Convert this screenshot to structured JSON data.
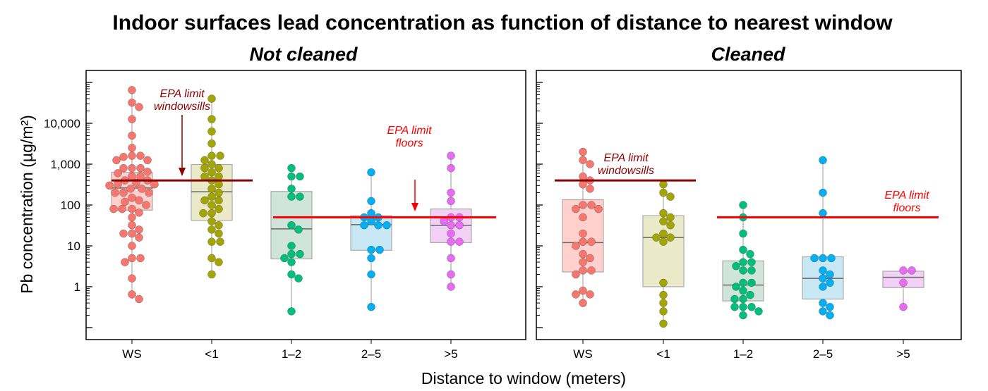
{
  "chart_data": {
    "type": "box-beeswarm",
    "title": "Indoor surfaces lead concentration as function of distance to nearest window",
    "xlabel": "Distance to window (meters)",
    "ylabel": "Pb concentration (µg/m²)",
    "yscale": "log",
    "ylim": [
      0.05,
      220000
    ],
    "yticks": [
      1,
      10,
      100,
      1000,
      10000
    ],
    "ytick_labels": [
      "1",
      "10",
      "100",
      "1,000",
      "10,000"
    ],
    "categories": [
      "WS",
      "<1",
      "1–2",
      "2–5",
      ">5"
    ],
    "colors": [
      "#f8766d",
      "#a3a500",
      "#00bf7d",
      "#00b0f6",
      "#e76bf3"
    ],
    "box_fills": [
      "#ffd0cc",
      "#eaeac8",
      "#cfe5dc",
      "#c9e8f5",
      "#f3d0f5"
    ],
    "reference_lines": [
      {
        "name": "windowsills",
        "value": 400,
        "color": "#8b0000",
        "label_1": "EPA limit",
        "label_2": "windowsills"
      },
      {
        "name": "floors",
        "value": 50,
        "color": "#ff0000",
        "label_1": "EPA limit",
        "label_2": "floors"
      }
    ],
    "panels": [
      {
        "title": "Not cleaned",
        "groups": [
          {
            "q1": 75,
            "median": 260,
            "q3": 630,
            "points": [
              65000,
              32000,
              25000,
              12600,
              5000,
              2500,
              1600,
              1600,
              1500,
              1250,
              1250,
              800,
              800,
              800,
              650,
              600,
              500,
              500,
              400,
              400,
              350,
              320,
              320,
              300,
              250,
              250,
              200,
              200,
              200,
              150,
              130,
              120,
              100,
              80,
              80,
              80,
              65,
              50,
              32,
              25,
              20,
              20,
              16,
              10,
              5,
              5,
              4,
              1.6,
              0.65,
              0.5
            ]
          },
          {
            "q1": 42,
            "median": 210,
            "q3": 980,
            "points": [
              40000,
              12600,
              6300,
              3200,
              1600,
              1600,
              1250,
              1000,
              800,
              800,
              630,
              500,
              500,
              400,
              320,
              250,
              200,
              160,
              130,
              130,
              100,
              80,
              63,
              63,
              40,
              32,
              25,
              20,
              12.6,
              12.6,
              5,
              4,
              2
            ]
          },
          {
            "q1": 4.8,
            "median": 26,
            "q3": 215,
            "points": [
              800,
              500,
              500,
              250,
              160,
              160,
              32,
              25,
              10,
              6.3,
              6.3,
              5,
              4,
              2,
              1.6,
              0.25
            ]
          },
          {
            "q1": 7.8,
            "median": 33,
            "q3": 55,
            "points": [
              630,
              125,
              63,
              50,
              50,
              40,
              32,
              32,
              32,
              8,
              8,
              5,
              2,
              0.32
            ]
          },
          {
            "q1": 12,
            "median": 32,
            "q3": 80,
            "points": [
              1600,
              800,
              200,
              125,
              50,
              50,
              40,
              32,
              32,
              20,
              12.6,
              12.6,
              5,
              2,
              1
            ]
          }
        ]
      },
      {
        "title": "Cleaned",
        "groups": [
          {
            "q1": 2.3,
            "median": 12,
            "q3": 135,
            "points": [
              2000,
              1260,
              1000,
              500,
              400,
              320,
              250,
              100,
              100,
              80,
              80,
              50,
              20,
              12.6,
              12.6,
              10,
              6.3,
              5,
              4,
              2.5,
              2.5,
              2,
              0.8,
              0.65,
              0.65,
              0.4
            ]
          },
          {
            "q1": 1.0,
            "median": 16,
            "q3": 55,
            "points": [
              320,
              200,
              160,
              63,
              50,
              40,
              32,
              20,
              16,
              16,
              12.6,
              1.25,
              0.63,
              0.4,
              0.25,
              0.125
            ]
          },
          {
            "q1": 0.45,
            "median": 1.1,
            "q3": 4.3,
            "points": [
              100,
              50,
              20,
              8,
              6.3,
              4,
              4,
              3.2,
              2.5,
              2.5,
              1.25,
              1.25,
              1,
              0.8,
              0.63,
              0.5,
              0.5,
              0.32,
              0.32,
              0.32,
              0.25,
              0.2
            ]
          },
          {
            "q1": 0.5,
            "median": 1.6,
            "q3": 5.4,
            "points": [
              1250,
              200,
              63,
              5,
              5,
              5,
              2.5,
              2,
              1.6,
              1.25,
              1,
              0.4,
              0.32,
              0.25,
              0.2
            ]
          },
          {
            "q1": 0.95,
            "median": 1.7,
            "q3": 2.4,
            "points": [
              2.5,
              2.5,
              1.25,
              0.32
            ]
          }
        ]
      }
    ]
  }
}
